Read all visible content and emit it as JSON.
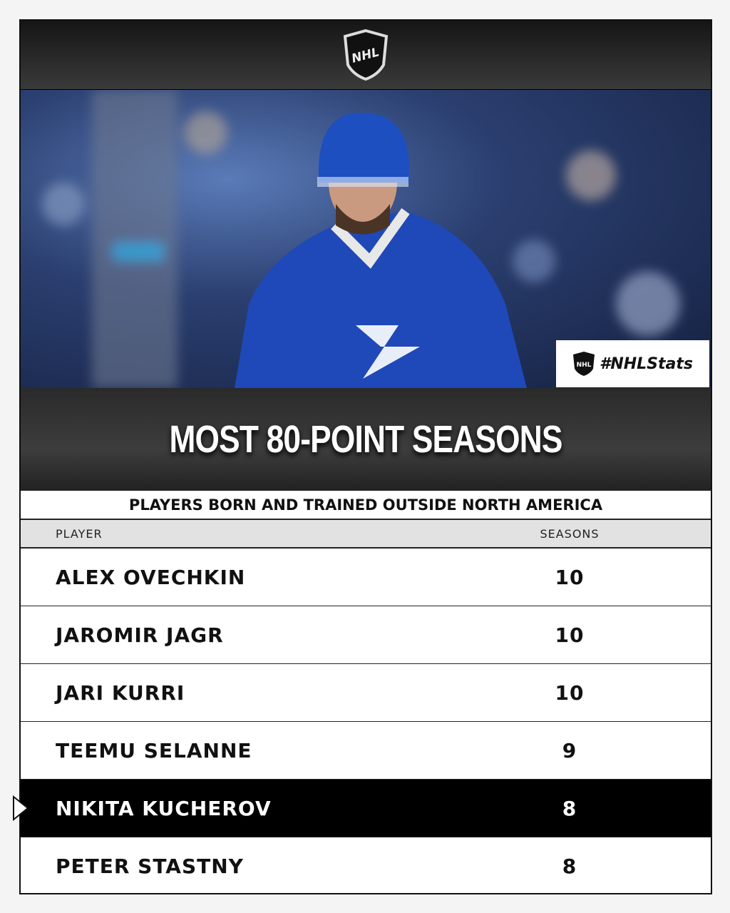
{
  "header": {
    "logo": "NHL"
  },
  "photo": {
    "hashtag_logo": "NHL",
    "hashtag": "#NHLStats"
  },
  "title": "MOST 80-POINT SEASONS",
  "subtitle": "PLAYERS BORN AND TRAINED OUTSIDE NORTH AMERICA",
  "table": {
    "columns": [
      "PLAYER",
      "SEASONS"
    ],
    "rows": [
      [
        "ALEX OVECHKIN",
        10
      ],
      [
        "JAROMIR JAGR",
        10
      ],
      [
        "JARI KURRI",
        10
      ],
      [
        "TEEMU SELANNE",
        9
      ],
      [
        "NIKITA KUCHEROV",
        8
      ],
      [
        "PETER STASTNY",
        8
      ]
    ]
  }
}
